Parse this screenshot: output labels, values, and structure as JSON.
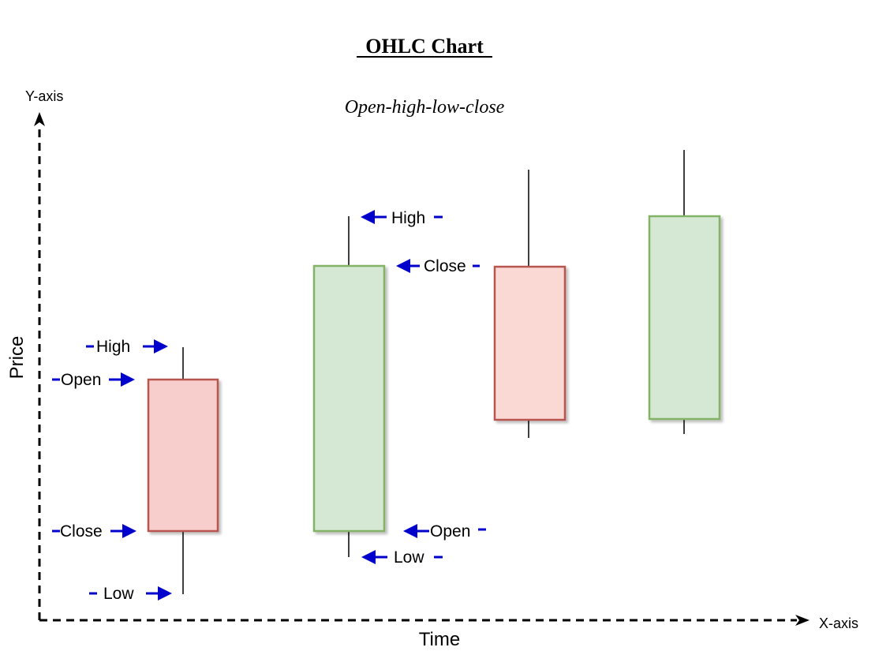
{
  "diagram": {
    "title": "OHLC Chart",
    "subtitle": "Open-high-low-close",
    "y_axis_label": "Y-axis",
    "x_axis_label": "X-axis",
    "y_axis_title": "Price",
    "x_axis_title": "Time"
  },
  "candle_labels": {
    "bearish": {
      "high": "High",
      "open": "Open",
      "close": "Close",
      "low": "Low"
    },
    "bullish": {
      "high": "High",
      "close": "Close",
      "open": "Open",
      "low": "Low"
    }
  },
  "colors": {
    "bearish_fill": "#f8cecc",
    "bearish_stroke": "#b85450",
    "bullish_fill": "#d5e8d4",
    "bullish_stroke": "#82b366",
    "arrow": "#0000cc",
    "axis": "#000000"
  },
  "icons": {
    "pointer": "arrow-icon",
    "axis_head": "axis-arrowhead-icon"
  }
}
